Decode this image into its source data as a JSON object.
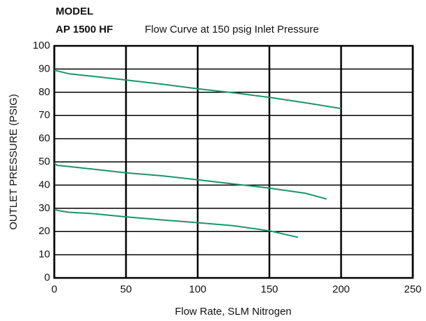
{
  "chart_data": {
    "type": "line",
    "model_label": "MODEL",
    "model": "AP 1500 HF",
    "title": "Flow Curve at 150 psig Inlet Pressure",
    "xlabel": "Flow Rate, SLM Nitrogen",
    "ylabel": "OUTLET PRESSURE (PSIG)",
    "xlim": [
      0,
      250
    ],
    "xticks": [
      0,
      50,
      100,
      150,
      200,
      250
    ],
    "ylim": [
      0,
      100
    ],
    "yticks": [
      0,
      10,
      20,
      30,
      40,
      50,
      60,
      70,
      80,
      90,
      100
    ],
    "grid": true,
    "series": [
      {
        "color": "#16966b",
        "x": [
          0,
          10,
          25,
          50,
          75,
          100,
          125,
          150,
          175,
          200
        ],
        "values": [
          89.5,
          88,
          87,
          85.3,
          83.5,
          81.5,
          79.8,
          77.8,
          75.5,
          73
        ]
      },
      {
        "color": "#16966b",
        "x": [
          0,
          2,
          10,
          25,
          50,
          75,
          100,
          125,
          150,
          175,
          190
        ],
        "values": [
          49.5,
          48.5,
          48,
          47,
          45.3,
          44,
          42.3,
          40.5,
          38.7,
          36.5,
          34
        ]
      },
      {
        "color": "#16966b",
        "x": [
          0,
          3,
          10,
          25,
          50,
          75,
          100,
          125,
          150,
          170
        ],
        "values": [
          29.5,
          29,
          28.3,
          27.8,
          26.3,
          25,
          23.8,
          22.5,
          20.3,
          17.5
        ]
      }
    ]
  }
}
